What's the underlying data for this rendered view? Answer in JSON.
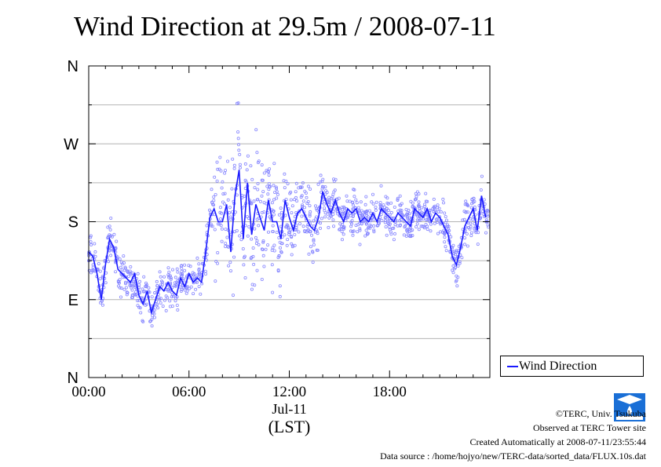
{
  "chart_data": {
    "type": "scatter",
    "title": "Wind Direction at 29.5m / 2008-07-11",
    "xlabel_date": "Jul-11",
    "xlabel_unit": "(LST)",
    "x_unit": "hours",
    "xlim": [
      0,
      24
    ],
    "x_ticks": [
      {
        "value": 0,
        "label": "00:00"
      },
      {
        "value": 6,
        "label": "06:00"
      },
      {
        "value": 12,
        "label": "12:00"
      },
      {
        "value": 18,
        "label": "18:00"
      }
    ],
    "y_unit": "degrees",
    "ylim": [
      0,
      360
    ],
    "y_ticks": [
      {
        "value": 0,
        "label": "N"
      },
      {
        "value": 90,
        "label": "E"
      },
      {
        "value": 180,
        "label": "S"
      },
      {
        "value": 270,
        "label": "W"
      },
      {
        "value": 360,
        "label": "N"
      }
    ],
    "grid": true,
    "legend": {
      "position": "right",
      "entries": [
        "Wind Direction"
      ]
    },
    "series": [
      {
        "name": "Wind Direction",
        "color": "#1a1aff",
        "points_color": "#8888ff",
        "x": [
          0.0,
          0.25,
          0.5,
          0.75,
          1.0,
          1.25,
          1.5,
          1.75,
          2.0,
          2.25,
          2.5,
          2.75,
          3.0,
          3.25,
          3.5,
          3.75,
          4.0,
          4.25,
          4.5,
          4.75,
          5.0,
          5.25,
          5.5,
          5.75,
          6.0,
          6.25,
          6.5,
          6.75,
          7.0,
          7.25,
          7.5,
          7.75,
          8.0,
          8.25,
          8.5,
          8.75,
          9.0,
          9.25,
          9.5,
          9.75,
          10.0,
          10.25,
          10.5,
          10.75,
          11.0,
          11.25,
          11.5,
          11.75,
          12.0,
          12.25,
          12.5,
          12.75,
          13.0,
          13.25,
          13.5,
          13.75,
          14.0,
          14.25,
          14.5,
          14.75,
          15.0,
          15.25,
          15.5,
          15.75,
          16.0,
          16.25,
          16.5,
          16.75,
          17.0,
          17.25,
          17.5,
          17.75,
          18.0,
          18.25,
          18.5,
          18.75,
          19.0,
          19.25,
          19.5,
          19.75,
          20.0,
          20.25,
          20.5,
          20.75,
          21.0,
          21.25,
          21.5,
          21.75,
          22.0,
          22.25,
          22.5,
          22.75,
          23.0,
          23.25,
          23.5,
          23.75
        ],
        "y": [
          145,
          140,
          120,
          90,
          130,
          160,
          150,
          125,
          120,
          115,
          110,
          120,
          95,
          85,
          100,
          75,
          90,
          105,
          100,
          110,
          100,
          95,
          115,
          105,
          120,
          110,
          115,
          110,
          145,
          185,
          195,
          180,
          180,
          200,
          145,
          210,
          240,
          160,
          225,
          165,
          200,
          185,
          170,
          205,
          180,
          180,
          160,
          205,
          185,
          170,
          190,
          195,
          185,
          175,
          170,
          185,
          215,
          200,
          190,
          205,
          190,
          180,
          195,
          190,
          195,
          180,
          185,
          180,
          190,
          180,
          195,
          190,
          185,
          180,
          190,
          185,
          180,
          175,
          195,
          190,
          185,
          195,
          180,
          190,
          185,
          175,
          165,
          140,
          130,
          150,
          175,
          185,
          195,
          170,
          210,
          185
        ]
      }
    ]
  },
  "legend_label": "Wind Direction",
  "credits": {
    "line1": "©TERC, Univ. Tsukuba",
    "line2": "Observed at TERC Tower site",
    "line3": "Created Automatically at 2008-07-11/23:55:44",
    "line4": "Data source : /home/hojyo/new/TERC-data/sorted_data/FLUX.10s.dat"
  },
  "logo": {
    "text": "TERC",
    "color": "#1a6fd6"
  }
}
